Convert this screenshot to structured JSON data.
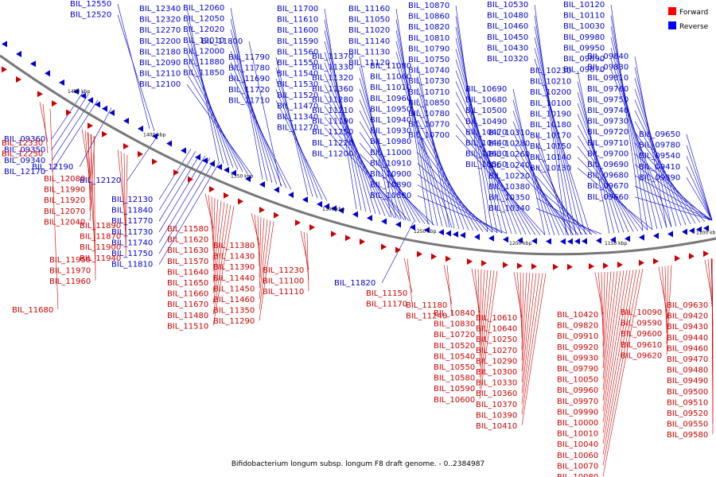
{
  "caption": "Bifidobacterium longum subsp. longum F8 draft genome. - 0..2384987",
  "legend": [
    {
      "label": "Forward",
      "color": "#ff0000"
    },
    {
      "label": "Reverse",
      "color": "#0000ff"
    }
  ],
  "colors": {
    "forward": "#cc0000",
    "reverse": "#0000cc",
    "axis": "#777777"
  },
  "scale_labels": [
    "1450 kbp",
    "1400 kbp",
    "1350 kbp",
    "1300 kbp",
    "1250 kbp",
    "1200 kbp",
    "1150 kbp",
    "1100 kbp"
  ],
  "reverse_labels": [
    "BIL_12550",
    "BIL_12520",
    "BIL_12340",
    "BIL_12320",
    "BIL_12270",
    "BIL_12200",
    "BIL_12180",
    "BIL_12090",
    "BIL_12110",
    "BIL_12100",
    "BIL_12060",
    "BIL_12050",
    "BIL_12020",
    "BIL_12010",
    "BIL_12000",
    "BIL_11880",
    "BIL_11850",
    "BIL_11800",
    "BIL_11790",
    "BIL_11780",
    "BIL_11690",
    "BIL_11720",
    "BIL_11710",
    "BIL_11700",
    "BIL_11610",
    "BIL_11600",
    "BIL_11590",
    "BIL_11560",
    "BIL_11550",
    "BIL_11540",
    "BIL_11530",
    "BIL_11520",
    "BIL_11470",
    "BIL_11340",
    "BIL_11270",
    "BIL_11370",
    "BIL_11330",
    "BIL_11320",
    "BIL_11360",
    "BIL_11280",
    "BIL_11210",
    "BIL_11190",
    "BIL_11250",
    "BIL_11220",
    "BIL_11200",
    "BIL_11160",
    "BIL_11050",
    "BIL_11020",
    "BIL_11140",
    "BIL_11130",
    "BIL_11120",
    "BIL_11080",
    "BIL_11060",
    "BIL_11010",
    "BIL_10960",
    "BIL_10950",
    "BIL_10940",
    "BIL_10930",
    "BIL_10980",
    "BIL_11000",
    "BIL_10910",
    "BIL_10900",
    "BIL_10890",
    "BIL_10880",
    "BIL_10870",
    "BIL_10860",
    "BIL_10820",
    "BIL_10810",
    "BIL_10790",
    "BIL_10750",
    "BIL_10740",
    "BIL_10730",
    "BIL_10710",
    "BIL_10850",
    "BIL_10780",
    "BIL_10770",
    "BIL_10700",
    "BIL_10690",
    "BIL_10680",
    "BIL_10500",
    "BIL_10490",
    "BIL_10470",
    "BIL_10440",
    "BIL_10630",
    "BIL_10560",
    "BIL_10530",
    "BIL_10480",
    "BIL_10460",
    "BIL_10450",
    "BIL_10430",
    "BIL_10320",
    "BIL_10310",
    "BIL_10280",
    "BIL_10260",
    "BIL_10240",
    "BIL_10220",
    "BIL_10380",
    "BIL_10350",
    "BIL_10340",
    "BIL_10230",
    "BIL_10210",
    "BIL_10200",
    "BIL_10100",
    "BIL_10190",
    "BIL_10180",
    "BIL_10170",
    "BIL_10150",
    "BIL_10140",
    "BIL_10130",
    "BIL_10120",
    "BIL_10110",
    "BIL_10030",
    "BIL_09980",
    "BIL_09950",
    "BIL_09890",
    "BIL_09870",
    "BIL_09840",
    "BIL_09830",
    "BIL_09810",
    "BIL_09760",
    "BIL_09750",
    "BIL_09740",
    "BIL_09730",
    "BIL_09720",
    "BIL_09710",
    "BIL_09700",
    "BIL_09690",
    "BIL_09680",
    "BIL_09670",
    "BIL_09660",
    "BIL_09650",
    "BIL_09780",
    "BIL_09540",
    "BIL_09410",
    "BIL_09390",
    "BIL_09360",
    "BIL_09350",
    "BIL_09340",
    "BIL_12170",
    "BIL_12190",
    "BIL_12120",
    "BIL_12130",
    "BIL_11840",
    "BIL_11770",
    "BIL_11730",
    "BIL_11740",
    "BIL_11750",
    "BIL_11810",
    "BIL_11820",
    "BIL_11830",
    "BIL_11860",
    "BIL_11030"
  ],
  "forward_labels": [
    "BIL_12330",
    "BIL_12250",
    "BIL_12080",
    "BIL_11990",
    "BIL_11920",
    "BIL_12070",
    "BIL_12040",
    "BIL_11890",
    "BIL_11870",
    "BIL_11900",
    "BIL_11940",
    "BIL_11950",
    "BIL_11970",
    "BIL_11960",
    "BIL_11680",
    "BIL_11580",
    "BIL_11620",
    "BIL_11630",
    "BIL_11570",
    "BIL_11640",
    "BIL_11650",
    "BIL_11660",
    "BIL_11670",
    "BIL_11480",
    "BIL_11510",
    "BIL_11380",
    "BIL_11430",
    "BIL_11390",
    "BIL_11440",
    "BIL_11450",
    "BIL_11460",
    "BIL_11350",
    "BIL_11290",
    "BIL_11230",
    "BIL_11100",
    "BIL_11110",
    "BIL_11150",
    "BIL_11170",
    "BIL_11180",
    "BIL_11240",
    "BIL_10840",
    "BIL_10830",
    "BIL_10720",
    "BIL_10520",
    "BIL_10540",
    "BIL_10550",
    "BIL_10580",
    "BIL_10590",
    "BIL_10600",
    "BIL_10610",
    "BIL_10640",
    "BIL_10250",
    "BIL_10270",
    "BIL_10290",
    "BIL_10300",
    "BIL_10330",
    "BIL_10360",
    "BIL_10370",
    "BIL_10390",
    "BIL_10410",
    "BIL_10420",
    "BIL_09820",
    "BIL_09910",
    "BIL_09920",
    "BIL_09930",
    "BIL_09790",
    "BIL_10050",
    "BIL_09960",
    "BIL_09970",
    "BIL_09990",
    "BIL_10000",
    "BIL_10010",
    "BIL_10040",
    "BIL_10060",
    "BIL_10070",
    "BIL_10080",
    "BIL_10090",
    "BIL_09590",
    "BIL_09600",
    "BIL_09610",
    "BIL_09620",
    "BIL_09630",
    "BIL_09420",
    "BIL_09430",
    "BIL_09440",
    "BIL_09460",
    "BIL_09470",
    "BIL_09480",
    "BIL_09490",
    "BIL_09500",
    "BIL_09510",
    "BIL_09520",
    "BIL_09550",
    "BIL_09580"
  ]
}
